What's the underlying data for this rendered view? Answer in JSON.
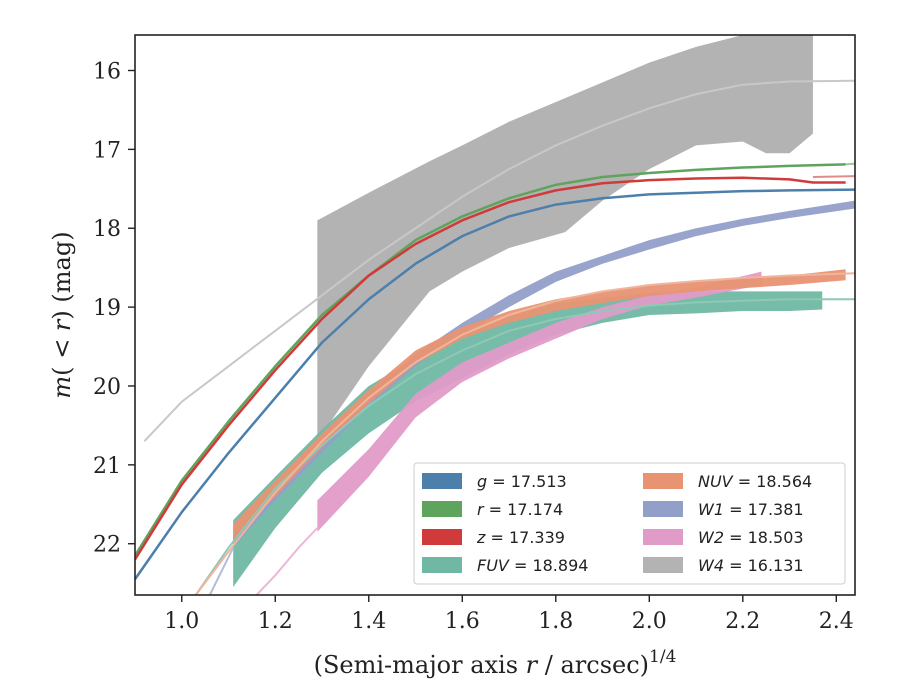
{
  "chart_data": {
    "type": "line",
    "xlabel": "(Semi-major axis r / arcsec)^{1/4}",
    "xlabel_parts": {
      "pre": "(Semi-major axis ",
      "var": "r",
      "post": " / arcsec)",
      "sup": "1/4"
    },
    "ylabel": "m(<r) (mag)",
    "ylabel_parts": {
      "func": "m",
      "open": "(",
      "lt": " < ",
      "var": "r",
      "close": ")",
      "unit": " (mag)"
    },
    "xlim": [
      0.9,
      2.44
    ],
    "ylim": [
      22.65,
      15.55
    ],
    "y_inverted": true,
    "x_ticks": [
      "1.0",
      "1.2",
      "1.4",
      "1.6",
      "1.8",
      "2.0",
      "2.2",
      "2.4"
    ],
    "y_ticks": [
      "16",
      "17",
      "18",
      "19",
      "20",
      "21",
      "22"
    ],
    "grid": false,
    "legend_position": "lower-right",
    "legend_columns": 2,
    "series": [
      {
        "name": "g = 17.513",
        "label_var": "g",
        "label_value": "17.513",
        "band": "g",
        "color": "#4c7fab",
        "x": [
          0.9,
          1.0,
          1.1,
          1.2,
          1.3,
          1.4,
          1.5,
          1.6,
          1.7,
          1.8,
          1.9,
          2.0,
          2.1,
          2.2,
          2.3,
          2.44
        ],
        "y": [
          22.45,
          21.6,
          20.85,
          20.15,
          19.45,
          18.9,
          18.45,
          18.1,
          17.85,
          17.7,
          17.62,
          17.57,
          17.55,
          17.53,
          17.52,
          17.51
        ],
        "style": "line"
      },
      {
        "name": "r = 17.174",
        "label_var": "r",
        "label_value": "17.174",
        "band": "r",
        "color": "#5ea45d",
        "x": [
          0.9,
          1.0,
          1.1,
          1.2,
          1.3,
          1.4,
          1.5,
          1.6,
          1.7,
          1.8,
          1.9,
          2.0,
          2.1,
          2.2,
          2.3,
          2.42
        ],
        "y": [
          22.15,
          21.2,
          20.45,
          19.75,
          19.1,
          18.6,
          18.15,
          17.85,
          17.62,
          17.45,
          17.35,
          17.3,
          17.26,
          17.23,
          17.21,
          17.19
        ],
        "style": "line"
      },
      {
        "name": "z = 17.339",
        "label_var": "z",
        "label_value": "17.339",
        "band": "z",
        "color": "#d13a3a",
        "x": [
          0.9,
          1.0,
          1.1,
          1.2,
          1.3,
          1.4,
          1.5,
          1.6,
          1.7,
          1.8,
          1.9,
          2.0,
          2.1,
          2.2,
          2.3,
          2.35,
          2.42
        ],
        "y": [
          22.2,
          21.25,
          20.5,
          19.8,
          19.15,
          18.6,
          18.2,
          17.9,
          17.67,
          17.52,
          17.43,
          17.39,
          17.37,
          17.36,
          17.38,
          17.42,
          17.42
        ],
        "style": "line"
      },
      {
        "name": "FUV = 18.894",
        "label_var": "FUV",
        "label_value": "18.894",
        "band": "FUV",
        "color": "#70b8a4",
        "x": [
          1.11,
          1.2,
          1.3,
          1.4,
          1.5,
          1.6,
          1.7,
          1.8,
          1.9,
          2.0,
          2.1,
          2.2,
          2.3,
          2.37
        ],
        "y_low": [
          21.7,
          21.15,
          20.55,
          20.0,
          19.65,
          19.35,
          19.1,
          18.95,
          18.88,
          18.82,
          18.8,
          18.8,
          18.8,
          18.8
        ],
        "y_high": [
          22.55,
          21.8,
          21.1,
          20.6,
          20.2,
          19.9,
          19.6,
          19.35,
          19.2,
          19.1,
          19.08,
          19.05,
          19.05,
          19.03
        ],
        "style": "band"
      },
      {
        "name": "NUV = 18.564",
        "label_var": "NUV",
        "label_value": "18.564",
        "band": "NUV",
        "color": "#e89472",
        "x": [
          1.11,
          1.2,
          1.3,
          1.4,
          1.5,
          1.6,
          1.7,
          1.8,
          1.9,
          2.0,
          2.1,
          2.2,
          2.3,
          2.42
        ],
        "y_low": [
          21.75,
          21.2,
          20.6,
          20.05,
          19.55,
          19.25,
          19.05,
          18.9,
          18.8,
          18.72,
          18.68,
          18.64,
          18.6,
          18.52
        ],
        "y_high": [
          21.95,
          21.4,
          20.78,
          20.22,
          19.72,
          19.4,
          19.2,
          19.05,
          18.95,
          18.86,
          18.8,
          18.76,
          18.72,
          18.66
        ],
        "style": "band"
      },
      {
        "name": "W1 = 17.381",
        "label_var": "W1",
        "label_value": "17.381",
        "band": "W1",
        "color": "#929fc9",
        "x": [
          1.11,
          1.2,
          1.3,
          1.4,
          1.5,
          1.6,
          1.7,
          1.8,
          1.9,
          2.0,
          2.1,
          2.2,
          2.3,
          2.44
        ],
        "y_low": [
          21.9,
          21.3,
          20.7,
          20.1,
          19.6,
          19.2,
          18.85,
          18.55,
          18.35,
          18.15,
          18.0,
          17.88,
          17.78,
          17.65
        ],
        "y_high": [
          22.05,
          21.45,
          20.85,
          20.25,
          19.75,
          19.35,
          19.0,
          18.68,
          18.45,
          18.27,
          18.1,
          17.97,
          17.87,
          17.75
        ],
        "style": "band"
      },
      {
        "name": "W2 = 18.503",
        "label_var": "W2",
        "label_value": "18.503",
        "band": "W2",
        "color": "#e09bc8",
        "x": [
          1.29,
          1.4,
          1.5,
          1.6,
          1.7,
          1.8,
          1.9,
          2.0,
          2.1,
          2.24
        ],
        "y_low": [
          21.45,
          20.8,
          20.1,
          19.7,
          19.45,
          19.2,
          19.0,
          18.85,
          18.75,
          18.55
        ],
        "y_high": [
          21.85,
          21.15,
          20.4,
          19.95,
          19.65,
          19.4,
          19.15,
          18.98,
          18.88,
          18.72
        ],
        "style": "band"
      },
      {
        "name": "W4 = 16.131",
        "label_var": "W4",
        "label_value": "16.131",
        "band": "W4",
        "color": "#b3b3b3",
        "x": [
          1.29,
          1.4,
          1.53,
          1.6,
          1.7,
          1.82,
          1.9,
          2.0,
          2.1,
          2.2,
          2.25,
          2.3,
          2.35
        ],
        "y_low": [
          17.9,
          17.55,
          17.15,
          16.95,
          16.65,
          16.35,
          16.15,
          15.9,
          15.7,
          15.55,
          15.55,
          15.55,
          15.55
        ],
        "y_high": [
          20.7,
          19.75,
          18.8,
          18.55,
          18.25,
          18.05,
          17.65,
          17.25,
          16.95,
          16.9,
          17.05,
          17.05,
          16.8
        ],
        "style": "band"
      }
    ],
    "model_curves": [
      {
        "band": "W4",
        "color": "#c8c8c8",
        "x": [
          0.92,
          1.0,
          1.1,
          1.2,
          1.3,
          1.4,
          1.5,
          1.6,
          1.7,
          1.8,
          1.9,
          2.0,
          2.1,
          2.2,
          2.3,
          2.44
        ],
        "y": [
          20.7,
          20.2,
          19.75,
          19.3,
          18.85,
          18.4,
          18.0,
          17.6,
          17.25,
          16.95,
          16.7,
          16.48,
          16.3,
          16.18,
          16.14,
          16.13
        ]
      },
      {
        "band": "FUV",
        "color": "#8ec9b6",
        "x": [
          1.03,
          1.1,
          1.2,
          1.3,
          1.4,
          1.5,
          1.6,
          1.7,
          1.8,
          1.9,
          2.0,
          2.1,
          2.2,
          2.3,
          2.44
        ],
        "y": [
          22.65,
          22.05,
          21.3,
          20.75,
          20.25,
          19.85,
          19.55,
          19.3,
          19.15,
          19.05,
          18.98,
          18.94,
          18.92,
          18.9,
          18.9
        ]
      },
      {
        "band": "NUV",
        "color": "#f0b59c",
        "x": [
          1.03,
          1.1,
          1.2,
          1.3,
          1.4,
          1.5,
          1.6,
          1.7,
          1.8,
          1.9,
          2.0,
          2.1,
          2.2,
          2.3,
          2.44
        ],
        "y": [
          22.65,
          22.1,
          21.35,
          20.7,
          20.15,
          19.7,
          19.35,
          19.1,
          18.92,
          18.8,
          18.72,
          18.67,
          18.63,
          18.6,
          18.57
        ]
      },
      {
        "band": "W1",
        "color": "#b4bedb",
        "x": [
          1.06,
          1.11
        ],
        "y": [
          22.65,
          22.05
        ]
      },
      {
        "band": "W2",
        "color": "#ebb8d9",
        "x": [
          1.16,
          1.2,
          1.25,
          1.29
        ],
        "y": [
          22.65,
          22.4,
          22.05,
          21.8
        ]
      },
      {
        "band": "r",
        "color": "#9cc89b",
        "x": [
          2.42,
          2.44
        ],
        "y": [
          17.19,
          17.18
        ]
      },
      {
        "band": "z",
        "color": "#e38b8b",
        "x": [
          2.35,
          2.44
        ],
        "y": [
          17.35,
          17.34
        ]
      }
    ]
  }
}
